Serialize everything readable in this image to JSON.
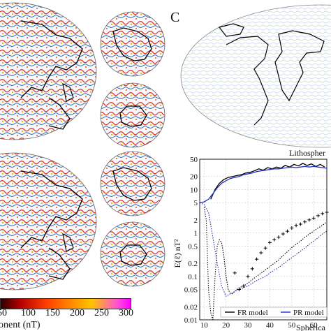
{
  "panel_letter": "C",
  "map_caption": "Lithospher",
  "colorbar": {
    "ticks": [
      "50",
      "100",
      "150",
      "200",
      "250",
      "300"
    ],
    "title": "onent (nT)"
  },
  "colors": {
    "coast": "#000000",
    "noise_red": "#d7301f",
    "noise_blue": "#2b6cb0",
    "fr_series": "#000000",
    "pr_series": "#1f2fbf"
  },
  "chart_data": {
    "type": "line",
    "ylabel": "E(ℓ)  nT²",
    "xlabel": "Spherica",
    "y_scale": "log",
    "ylim": [
      0.01,
      50
    ],
    "xlim": [
      8,
      66
    ],
    "x_ticks": [
      10,
      20,
      30,
      40,
      50,
      60
    ],
    "y_ticks": [
      {
        "v": 50,
        "label": "50"
      },
      {
        "v": 20,
        "label": "20"
      },
      {
        "v": 10,
        "label": "10"
      },
      {
        "v": 5,
        "label": "5"
      },
      {
        "v": 2,
        "label": "2"
      },
      {
        "v": 1,
        "label": "1"
      },
      {
        "v": 0.5,
        "label": "0.5"
      },
      {
        "v": 0.2,
        "label": "0.2"
      },
      {
        "v": 0.1,
        "label": "0.1"
      },
      {
        "v": 0.05,
        "label": "0.05"
      },
      {
        "v": 0.02,
        "label": "0.02"
      },
      {
        "v": 0.01,
        "label": "0.01"
      }
    ],
    "grid": true,
    "legend_position": "bottom",
    "series": [
      {
        "name": "FR model",
        "style": "solid",
        "x": [
          13,
          15,
          17,
          19,
          21,
          23,
          25,
          27,
          29,
          31,
          33,
          35,
          37,
          39,
          41,
          43,
          45,
          47,
          49,
          51,
          53,
          55,
          57,
          59,
          61,
          63,
          65
        ],
        "y": [
          6,
          10,
          14,
          17,
          19,
          20,
          21,
          22,
          24,
          25,
          27,
          30,
          28,
          32,
          30,
          33,
          31,
          36,
          33,
          38,
          35,
          40,
          36,
          39,
          34,
          38,
          33
        ]
      },
      {
        "name": "PR model",
        "style": "solid",
        "x": [
          8,
          10,
          12,
          14,
          16,
          18,
          20,
          22,
          24,
          26,
          28,
          30,
          32,
          34,
          36,
          38,
          40,
          42,
          44,
          46,
          48,
          50,
          52,
          54,
          56,
          58,
          60,
          62,
          64,
          66
        ],
        "y": [
          5,
          5.2,
          6,
          8,
          11,
          14,
          16,
          18,
          19,
          20,
          22,
          23,
          24,
          26,
          27,
          28,
          29,
          30,
          30,
          31,
          32,
          33,
          32,
          33,
          34,
          33,
          34,
          33,
          32,
          31
        ]
      },
      {
        "name": "",
        "style": "dotted",
        "x": [
          10,
          11,
          12,
          13,
          14,
          15,
          16,
          17,
          18,
          19,
          20,
          21,
          22,
          23,
          24,
          25,
          26,
          28,
          30,
          32,
          34,
          36,
          38,
          40,
          42,
          44,
          46,
          48,
          50,
          52,
          54,
          56,
          58,
          60,
          62,
          64,
          66
        ],
        "y": [
          4,
          2,
          0.05,
          0.015,
          0.01,
          0.1,
          0.5,
          0.7,
          0.6,
          0.3,
          0.1,
          0.05,
          0.04,
          0.04,
          0.045,
          0.05,
          0.055,
          0.06,
          0.07,
          0.085,
          0.1,
          0.12,
          0.14,
          0.17,
          0.2,
          0.24,
          0.3,
          0.37,
          0.46,
          0.55,
          0.65,
          0.8,
          0.95,
          1.1,
          1.3,
          1.5,
          1.8
        ]
      },
      {
        "name": "",
        "style": "dotted",
        "x": [
          8,
          10,
          12,
          14,
          16,
          18,
          20,
          22,
          24,
          26,
          28,
          30,
          32,
          34,
          36,
          38,
          40,
          42,
          44,
          46,
          48,
          50,
          52,
          54,
          56,
          58,
          60,
          62,
          64,
          66
        ],
        "y": [
          5,
          4.5,
          3,
          0.8,
          0.2,
          0.06,
          0.035,
          0.04,
          0.045,
          0.05,
          0.055,
          0.06,
          0.07,
          0.08,
          0.09,
          0.1,
          0.12,
          0.14,
          0.16,
          0.19,
          0.23,
          0.27,
          0.32,
          0.38,
          0.45,
          0.55,
          0.65,
          0.78,
          0.95,
          1.1
        ]
      },
      {
        "name": "",
        "style": "markers",
        "x": [
          24,
          26,
          28,
          30,
          32,
          34,
          36,
          38,
          40,
          42,
          44,
          46,
          48,
          50,
          52,
          54,
          56,
          58,
          60,
          62,
          64,
          66
        ],
        "y": [
          0.12,
          0.05,
          0.06,
          0.1,
          0.15,
          0.25,
          0.35,
          0.45,
          0.6,
          0.7,
          0.8,
          0.95,
          1.1,
          1.3,
          1.5,
          1.6,
          1.8,
          2,
          2.2,
          2.5,
          2.8,
          3.0
        ]
      }
    ],
    "legend": [
      {
        "label": "FR model",
        "color": "#000000"
      },
      {
        "label": "PR model",
        "color": "#1f2fbf"
      }
    ]
  }
}
